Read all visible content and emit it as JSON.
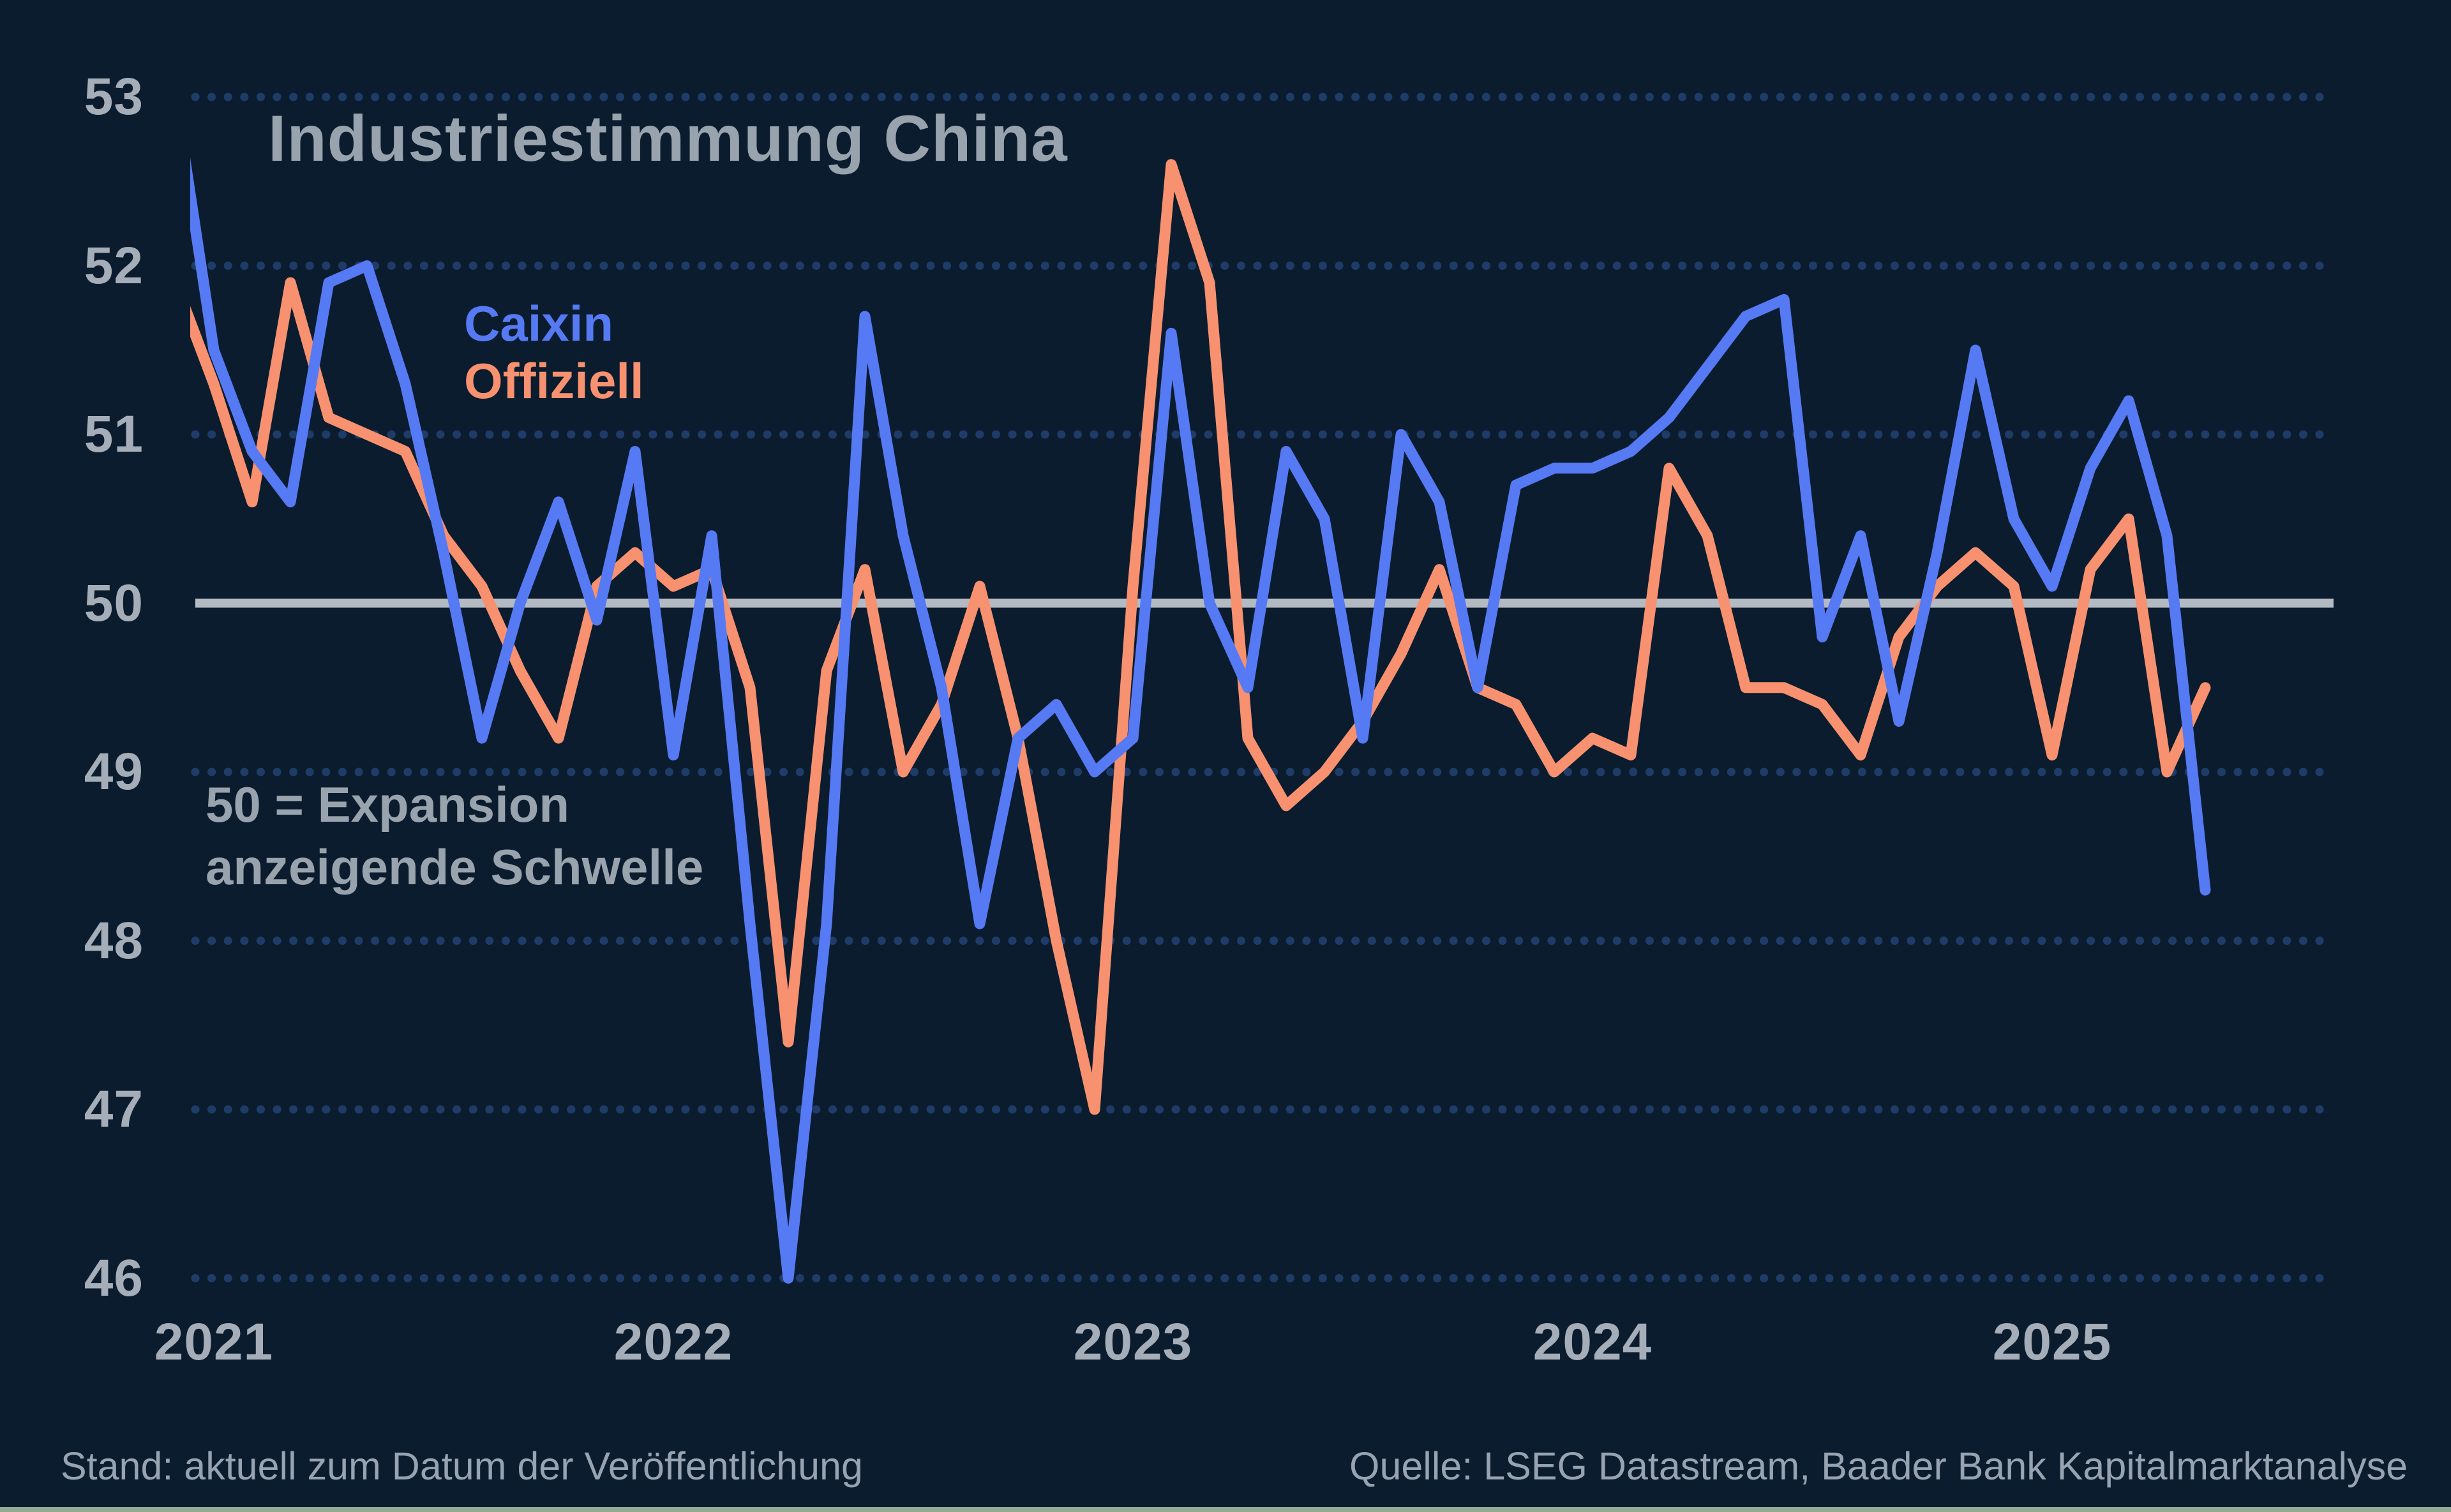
{
  "page": {
    "footer_left": "Stand: aktuell zum Datum der Veröffentlichung",
    "footer_right": "Quelle: LSEG Datastream, Baader Bank Kapitalmarktanalyse"
  },
  "colors": {
    "background": "#0b1c2e",
    "caixin_line": "#567af3",
    "offiziell_line": "#f7916f",
    "grid_dots": "#1f3c69",
    "threshold_line": "#b3bac2",
    "axis_labels": "#a5aeb8",
    "title": "#99a3ad",
    "annotation": "#99a3ad",
    "footer": "#97a3b0",
    "bottom_strip": "#90aa94"
  },
  "chart_data": {
    "type": "line",
    "title": "Industriestimmung China",
    "annotation": [
      "50 = Expansion",
      "anzeigende Schwelle"
    ],
    "threshold": {
      "value": 50,
      "meaning": "Expansion anzeigende Schwelle"
    },
    "x_start": "2020-12",
    "x_freq": "monthly",
    "x_tick_labels": [
      "2021",
      "2022",
      "2023",
      "2024",
      "2025"
    ],
    "y_ticks": [
      53,
      52,
      51,
      50,
      49,
      48,
      47,
      46
    ],
    "ylim": [
      46,
      53
    ],
    "grid": "dotted-horizontal",
    "legend_position": "upper-left-inside",
    "series": [
      {
        "name": "Caixin",
        "color": "#567af3",
        "values": [
          53.0,
          51.5,
          50.9,
          50.6,
          51.9,
          52.0,
          51.3,
          50.3,
          49.2,
          50.0,
          50.6,
          49.9,
          50.9,
          49.1,
          50.4,
          48.1,
          46.0,
          48.1,
          51.7,
          50.4,
          49.5,
          48.1,
          49.2,
          49.4,
          49.0,
          49.2,
          51.6,
          50.0,
          49.5,
          50.9,
          50.5,
          49.2,
          51.0,
          50.6,
          49.5,
          50.7,
          50.8,
          50.8,
          50.9,
          51.1,
          51.4,
          51.7,
          51.8,
          49.8,
          50.4,
          49.3,
          50.3,
          51.5,
          50.5,
          50.1,
          50.8,
          51.2,
          50.4,
          48.3
        ]
      },
      {
        "name": "Offiziell",
        "color": "#f7916f",
        "values": [
          51.9,
          51.3,
          50.6,
          51.9,
          51.1,
          51.0,
          50.9,
          50.4,
          50.1,
          49.6,
          49.2,
          50.1,
          50.3,
          50.1,
          50.2,
          49.5,
          47.4,
          49.6,
          50.2,
          49.0,
          49.4,
          50.1,
          49.2,
          48.0,
          47.0,
          50.1,
          52.6,
          51.9,
          49.2,
          48.8,
          49.0,
          49.3,
          49.7,
          50.2,
          49.5,
          49.4,
          49.0,
          49.2,
          49.1,
          50.8,
          50.4,
          49.5,
          49.5,
          49.4,
          49.1,
          49.8,
          50.1,
          50.3,
          50.1,
          49.1,
          50.2,
          50.5,
          49.0,
          49.5
        ]
      }
    ]
  }
}
